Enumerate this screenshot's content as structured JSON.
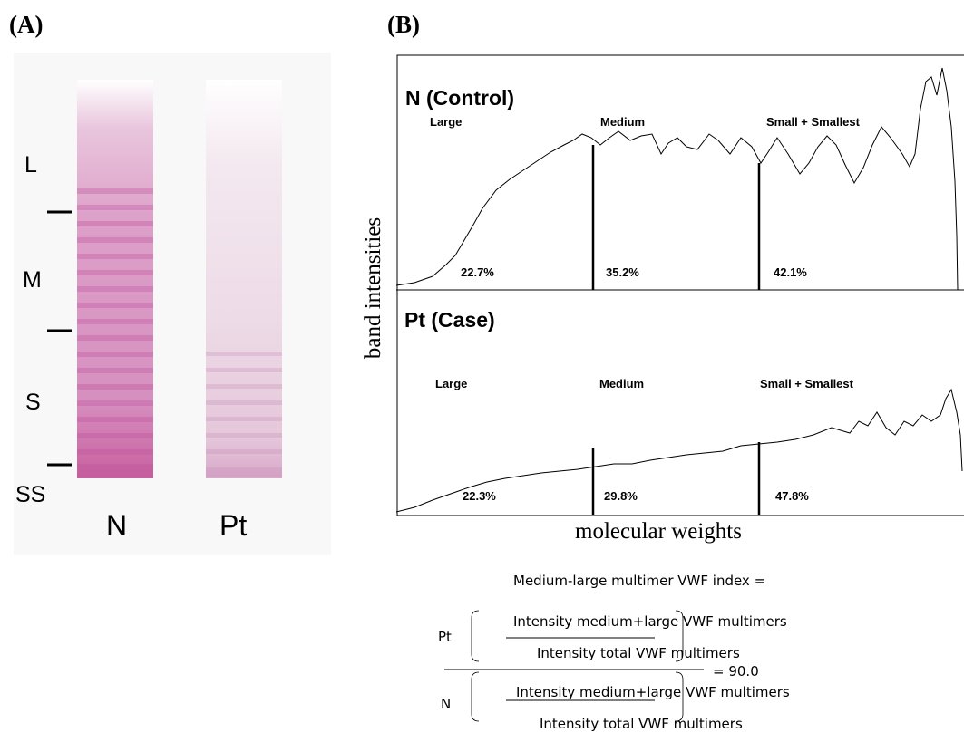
{
  "panel_a": {
    "label": "(A)",
    "markers": [
      "L",
      "M",
      "S",
      "SS"
    ],
    "lanes": [
      "N",
      "Pt"
    ]
  },
  "panel_b": {
    "label": "(B)",
    "ylabel": "band intensities",
    "xlabel": "molecular weights",
    "top_plot": {
      "title": "N (Control)",
      "regions": [
        "Large",
        "Medium",
        "Small + Smallest"
      ],
      "percents": [
        "22.7%",
        "35.2%",
        "42.1%"
      ]
    },
    "bottom_plot": {
      "title": "Pt (Case)",
      "regions": [
        "Large",
        "Medium",
        "Small + Smallest"
      ],
      "percents": [
        "22.3%",
        "29.8%",
        "47.8%"
      ]
    }
  },
  "formula": {
    "title": "Medium-large multimer VWF index  =",
    "pt_label": "Pt",
    "n_label": "N",
    "numerator_top": "Intensity medium+large VWF multimers",
    "numerator_bottom": "Intensity total VWF multimers",
    "denominator_top": "Intensity medium+large VWF multimers",
    "denominator_bottom": "Intensity total VWF multimers",
    "result": "=  90.0"
  },
  "colors": {
    "gel_band": "#c0559e",
    "gel_band_faint": "#c690b8"
  }
}
